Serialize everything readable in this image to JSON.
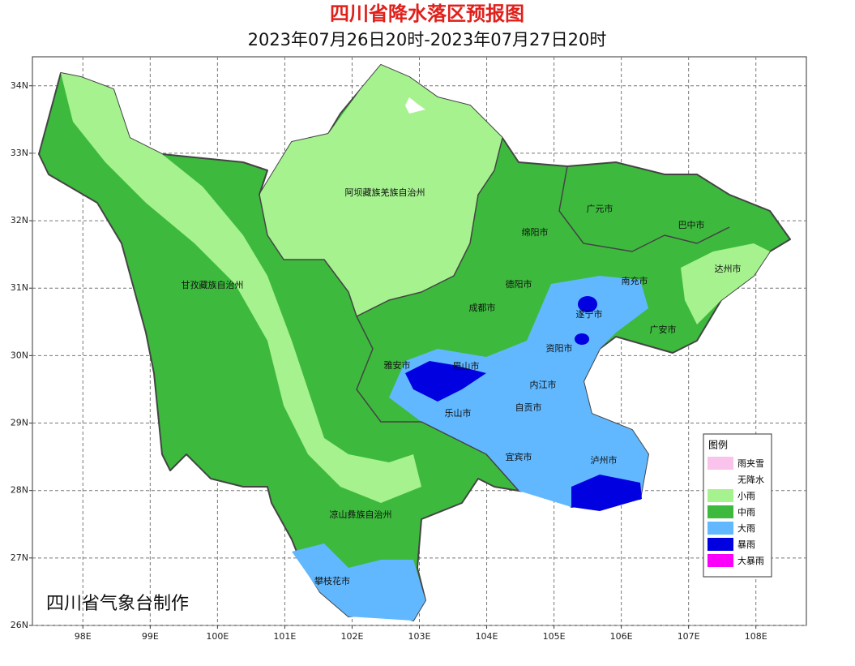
{
  "header": {
    "title": "四川省降水落区预报图",
    "subtitle": "2023年07月26日20时-2023年07月27日20时"
  },
  "map": {
    "xlim": [
      97.25,
      108.75
    ],
    "ylim": [
      26,
      34.43
    ],
    "xticks": [
      {
        "value": 98,
        "label": "98E"
      },
      {
        "value": 99,
        "label": "99E"
      },
      {
        "value": 100,
        "label": "100E"
      },
      {
        "value": 101,
        "label": "101E"
      },
      {
        "value": 102,
        "label": "102E"
      },
      {
        "value": 103,
        "label": "103E"
      },
      {
        "value": 104,
        "label": "104E"
      },
      {
        "value": 105,
        "label": "105E"
      },
      {
        "value": 106,
        "label": "106E"
      },
      {
        "value": 107,
        "label": "107E"
      },
      {
        "value": 108,
        "label": "108E"
      }
    ],
    "yticks": [
      {
        "value": 26,
        "label": "26N"
      },
      {
        "value": 27,
        "label": "27N"
      },
      {
        "value": 28,
        "label": "28N"
      },
      {
        "value": 29,
        "label": "29N"
      },
      {
        "value": 30,
        "label": "30N"
      },
      {
        "value": 31,
        "label": "31N"
      },
      {
        "value": 32,
        "label": "32N"
      },
      {
        "value": 33,
        "label": "33N"
      },
      {
        "value": 34,
        "label": "34N"
      }
    ],
    "grid": true
  },
  "places": [
    "阿坝藏族羌族自治州",
    "甘孜藏族自治州",
    "凉山彝族自治州",
    "攀枝花市",
    "雅安市",
    "眉山市",
    "乐山市",
    "成都市",
    "德阳市",
    "绵阳市",
    "广元市",
    "巴中市",
    "达州市",
    "南充市",
    "遂宁市",
    "广安市",
    "资阳市",
    "内江市",
    "自贡市",
    "宜宾市",
    "泸州市"
  ],
  "legend": {
    "title": "图例",
    "items": [
      {
        "name": "雨夹雪",
        "color": "#f9c3ec"
      },
      {
        "name": "无降水",
        "color": "#ffffff"
      },
      {
        "name": "小雨",
        "color": "#a6f28f"
      },
      {
        "name": "中雨",
        "color": "#3dba3d"
      },
      {
        "name": "大雨",
        "color": "#61b8ff"
      },
      {
        "name": "暴雨",
        "color": "#0000e1"
      },
      {
        "name": "大暴雨",
        "color": "#fa00fa"
      }
    ]
  },
  "footer": "四川省气象台制作"
}
